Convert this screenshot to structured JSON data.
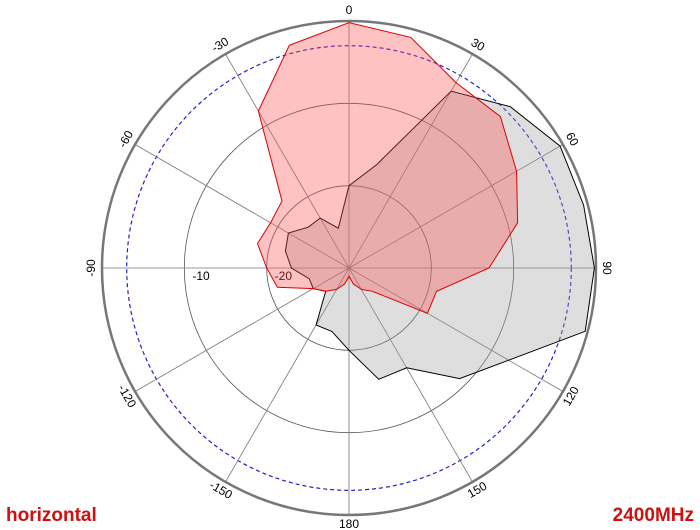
{
  "chart_data": {
    "type": "polar",
    "theta": [
      -165,
      -150,
      -135,
      -120,
      -105,
      -90,
      -75,
      -60,
      -45,
      -30,
      -15,
      0,
      15,
      30,
      45,
      60,
      75,
      90,
      105,
      120,
      135,
      150,
      165,
      180
    ],
    "series": [
      {
        "color": "#000000",
        "fill": "#a0a0a0",
        "values": [
          -22,
          -22,
          -26,
          -25,
          -25,
          -23,
          -22,
          -21.5,
          -23,
          -23,
          -25,
          -20,
          -17,
          -5.2,
          -2.3,
          -0.4,
          -0.5,
          -0.2,
          -0.3,
          -7.6,
          -11,
          -16,
          -16,
          -20
        ]
      },
      {
        "color": "#dd0000",
        "fill": "#ff5050",
        "values": [
          -28,
          -27,
          -26,
          -25,
          -21,
          -20,
          -18.5,
          -19,
          -18.5,
          -8,
          -2,
          -0.2,
          -1,
          -4,
          -4,
          -6.5,
          -8.8,
          -13,
          -19,
          -19,
          -26,
          -27,
          -28,
          -29
        ]
      }
    ],
    "rlim": [
      -30,
      0
    ],
    "rticks": [
      -20,
      -10
    ],
    "reference_ring": -3,
    "thetaticks": [
      0,
      30,
      60,
      90,
      120,
      150,
      180,
      -150,
      -120,
      -90,
      -60,
      -30
    ],
    "left_label": "horizontal",
    "right_label": "2400MHz"
  }
}
